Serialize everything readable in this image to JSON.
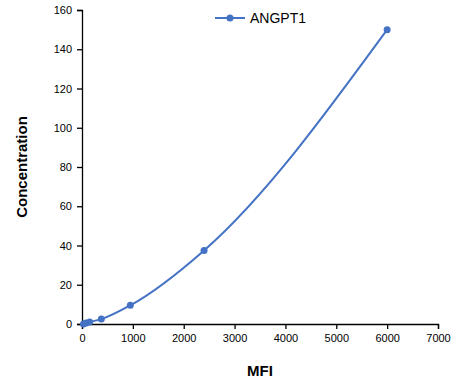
{
  "chart_data": {
    "type": "line",
    "x_label": "MFI",
    "y_label": "Concentration",
    "x": [
      30,
      80,
      150,
      380,
      950,
      2400,
      6000
    ],
    "series": [
      {
        "name": "ANGPT1",
        "color": "#4472c4",
        "marker": "circle",
        "line_style": "solid",
        "values": [
          0,
          0.5,
          1,
          2.5,
          9.5,
          37.5,
          150
        ]
      }
    ],
    "xlim": [
      0,
      7000
    ],
    "xticks": [
      0,
      1000,
      2000,
      3000,
      4000,
      5000,
      6000,
      7000
    ],
    "ylim": [
      0,
      160
    ],
    "yticks": [
      0,
      20,
      40,
      60,
      80,
      100,
      120,
      140,
      160
    ],
    "grid": false,
    "legend": "top"
  }
}
